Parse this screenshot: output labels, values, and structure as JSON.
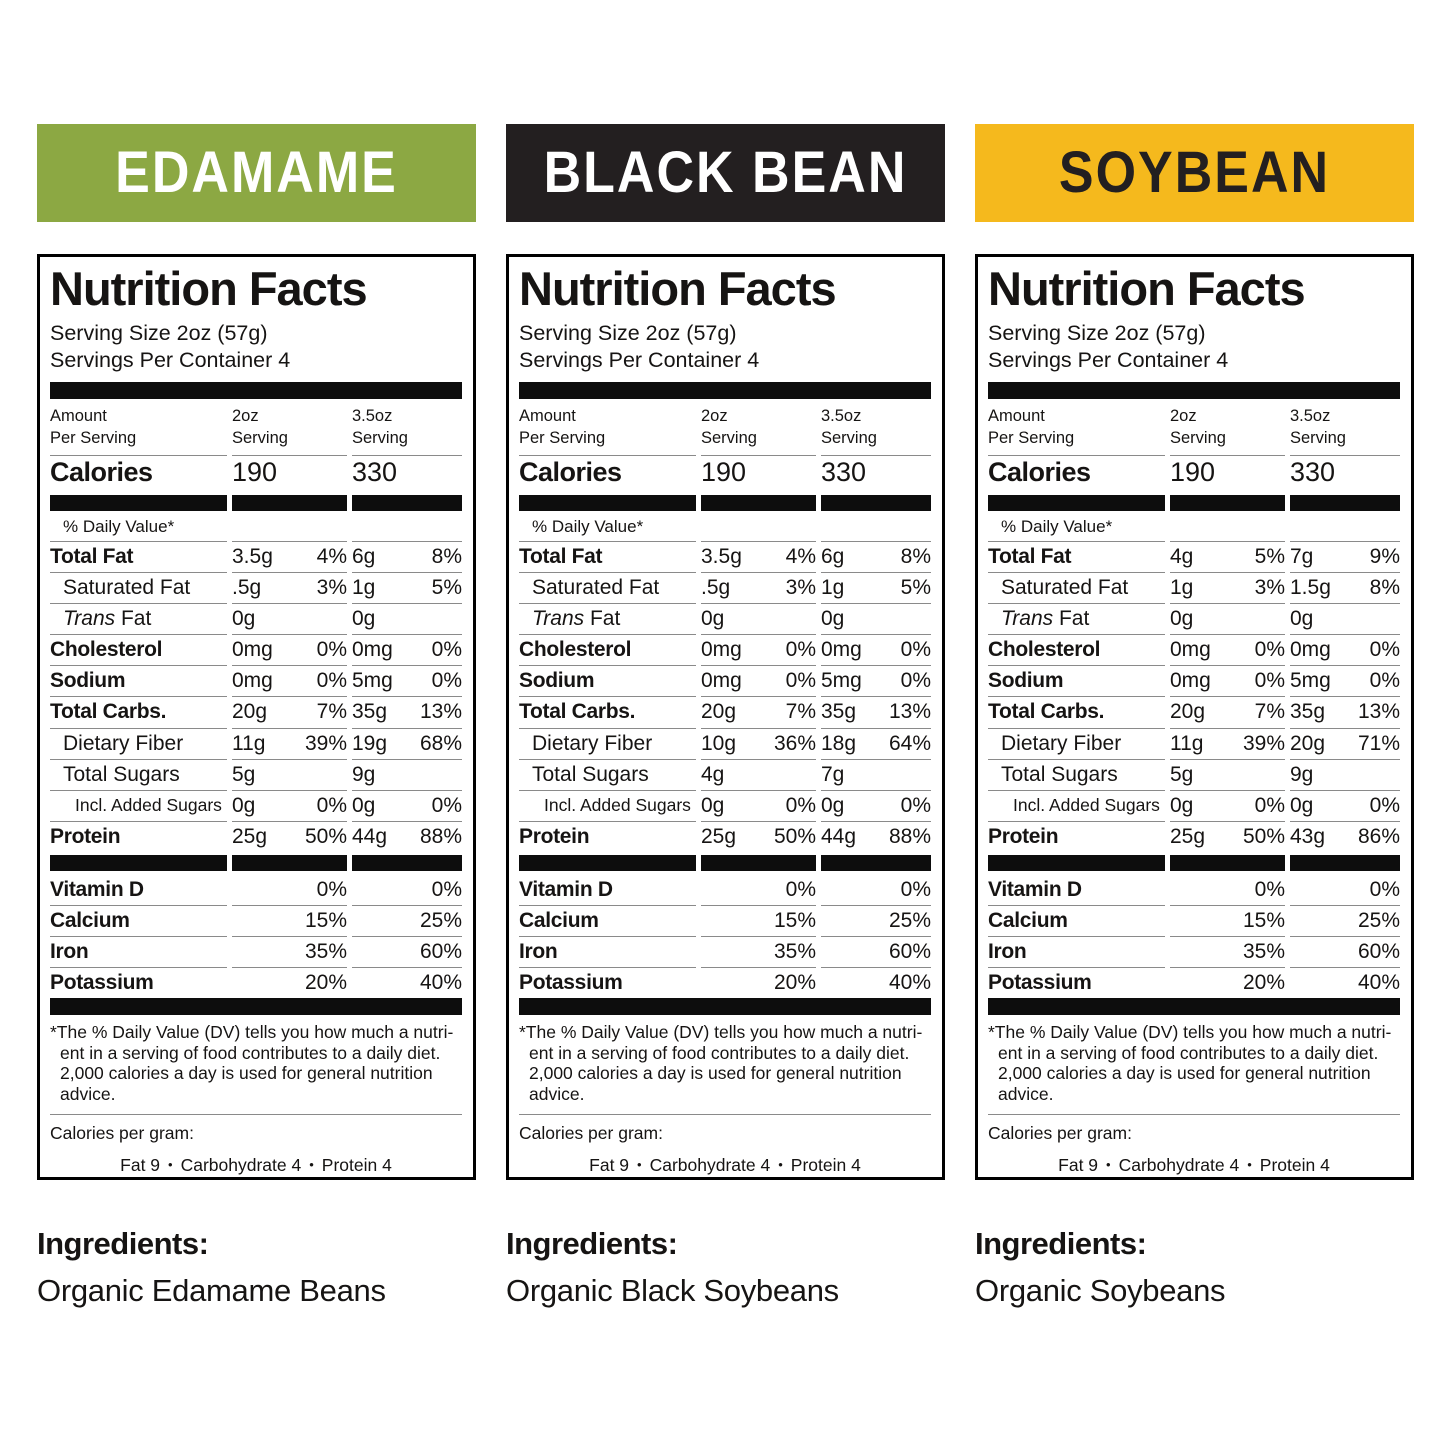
{
  "products": [
    {
      "name": "EDAMAME",
      "band": {
        "bg": "#8CA843",
        "fg": "#FFFFFF"
      },
      "ingredients": {
        "heading": "Ingredients:",
        "text": "Organic Edamame Beans"
      },
      "label": {
        "title": "Nutrition Facts",
        "serving_size": "Serving Size 2oz (57g)",
        "servings_per_container": "Servings Per Container 4",
        "columns": [
          {
            "line1": "Amount",
            "line2": "Per Serving"
          },
          {
            "line1": "2oz",
            "line2": "Serving"
          },
          {
            "line1": "3.5oz",
            "line2": "Serving"
          }
        ],
        "calories": {
          "label": "Calories",
          "v1": "190",
          "v2": "330"
        },
        "daily_value_header": "% Daily Value*",
        "nutrients": [
          {
            "name": "Total Fat",
            "bold": true,
            "a1": "3.5g",
            "p1": "4%",
            "a2": "6g",
            "p2": "8%"
          },
          {
            "name": "Saturated Fat",
            "indent": 1,
            "a1": ".5g",
            "p1": "3%",
            "a2": "1g",
            "p2": "5%"
          },
          {
            "name": "Trans Fat",
            "indent": 1,
            "italicFirst": true,
            "a1": "0g",
            "p1": "",
            "a2": "0g",
            "p2": ""
          },
          {
            "name": "Cholesterol",
            "bold": true,
            "a1": "0mg",
            "p1": "0%",
            "a2": "0mg",
            "p2": "0%"
          },
          {
            "name": "Sodium",
            "bold": true,
            "a1": "0mg",
            "p1": "0%",
            "a2": "5mg",
            "p2": "0%"
          },
          {
            "name": "Total Carbs.",
            "bold": true,
            "a1": "20g",
            "p1": "7%",
            "a2": "35g",
            "p2": "13%"
          },
          {
            "name": "Dietary Fiber",
            "indent": 1,
            "a1": "11g",
            "p1": "39%",
            "a2": "19g",
            "p2": "68%"
          },
          {
            "name": "Total Sugars",
            "indent": 1,
            "a1": "5g",
            "p1": "",
            "a2": "9g",
            "p2": ""
          },
          {
            "name": "Incl. Added Sugars",
            "indent": 2,
            "small": true,
            "a1": "0g",
            "p1": "0%",
            "a2": "0g",
            "p2": "0%"
          },
          {
            "name": "Protein",
            "bold": true,
            "a1": "25g",
            "p1": "50%",
            "a2": "44g",
            "p2": "88%"
          }
        ],
        "micros": [
          {
            "name": "Vitamin D",
            "p1": "0%",
            "p2": "0%"
          },
          {
            "name": "Calcium",
            "p1": "15%",
            "p2": "25%"
          },
          {
            "name": "Iron",
            "p1": "35%",
            "p2": "60%"
          },
          {
            "name": "Potassium",
            "p1": "20%",
            "p2": "40%"
          }
        ],
        "footnote_lines": [
          "*The % Daily Value (DV) tells you how much a nutri-",
          "ent in a serving of food contributes to a daily diet.",
          "2,000 calories a day is used for general nutrition",
          "advice."
        ],
        "calories_per_gram": {
          "label": "Calories per gram:",
          "separator": "•",
          "items": [
            "Fat 9",
            "Carbohydrate 4",
            "Protein 4"
          ]
        }
      }
    },
    {
      "name": "BLACK BEAN",
      "band": {
        "bg": "#231F20",
        "fg": "#FFFFFF"
      },
      "ingredients": {
        "heading": "Ingredients:",
        "text": "Organic Black Soybeans"
      },
      "label": {
        "title": "Nutrition Facts",
        "serving_size": "Serving Size 2oz (57g)",
        "servings_per_container": "Servings Per Container 4",
        "columns": [
          {
            "line1": "Amount",
            "line2": "Per Serving"
          },
          {
            "line1": "2oz",
            "line2": "Serving"
          },
          {
            "line1": "3.5oz",
            "line2": "Serving"
          }
        ],
        "calories": {
          "label": "Calories",
          "v1": "190",
          "v2": "330"
        },
        "daily_value_header": "% Daily Value*",
        "nutrients": [
          {
            "name": "Total Fat",
            "bold": true,
            "a1": "3.5g",
            "p1": "4%",
            "a2": "6g",
            "p2": "8%"
          },
          {
            "name": "Saturated Fat",
            "indent": 1,
            "a1": ".5g",
            "p1": "3%",
            "a2": "1g",
            "p2": "5%"
          },
          {
            "name": "Trans Fat",
            "indent": 1,
            "italicFirst": true,
            "a1": "0g",
            "p1": "",
            "a2": "0g",
            "p2": ""
          },
          {
            "name": "Cholesterol",
            "bold": true,
            "a1": "0mg",
            "p1": "0%",
            "a2": "0mg",
            "p2": "0%"
          },
          {
            "name": "Sodium",
            "bold": true,
            "a1": "0mg",
            "p1": "0%",
            "a2": "5mg",
            "p2": "0%"
          },
          {
            "name": "Total Carbs.",
            "bold": true,
            "a1": "20g",
            "p1": "7%",
            "a2": "35g",
            "p2": "13%"
          },
          {
            "name": "Dietary Fiber",
            "indent": 1,
            "a1": "10g",
            "p1": "36%",
            "a2": "18g",
            "p2": "64%"
          },
          {
            "name": "Total Sugars",
            "indent": 1,
            "a1": "4g",
            "p1": "",
            "a2": "7g",
            "p2": ""
          },
          {
            "name": "Incl. Added Sugars",
            "indent": 2,
            "small": true,
            "a1": "0g",
            "p1": "0%",
            "a2": "0g",
            "p2": "0%"
          },
          {
            "name": "Protein",
            "bold": true,
            "a1": "25g",
            "p1": "50%",
            "a2": "44g",
            "p2": "88%"
          }
        ],
        "micros": [
          {
            "name": "Vitamin D",
            "p1": "0%",
            "p2": "0%"
          },
          {
            "name": "Calcium",
            "p1": "15%",
            "p2": "25%"
          },
          {
            "name": "Iron",
            "p1": "35%",
            "p2": "60%"
          },
          {
            "name": "Potassium",
            "p1": "20%",
            "p2": "40%"
          }
        ],
        "footnote_lines": [
          "*The % Daily Value (DV) tells you how much a nutri-",
          "ent in a serving of food contributes to a daily diet.",
          "2,000 calories a day is used for general nutrition",
          "advice."
        ],
        "calories_per_gram": {
          "label": "Calories per gram:",
          "separator": "•",
          "items": [
            "Fat 9",
            "Carbohydrate 4",
            "Protein 4"
          ]
        }
      }
    },
    {
      "name": "SOYBEAN",
      "band": {
        "bg": "#F5B91D",
        "fg": "#231F20"
      },
      "ingredients": {
        "heading": "Ingredients:",
        "text": "Organic Soybeans"
      },
      "label": {
        "title": "Nutrition Facts",
        "serving_size": "Serving Size 2oz (57g)",
        "servings_per_container": "Servings Per Container 4",
        "columns": [
          {
            "line1": "Amount",
            "line2": "Per Serving"
          },
          {
            "line1": "2oz",
            "line2": "Serving"
          },
          {
            "line1": "3.5oz",
            "line2": "Serving"
          }
        ],
        "calories": {
          "label": "Calories",
          "v1": "190",
          "v2": "330"
        },
        "daily_value_header": "% Daily Value*",
        "nutrients": [
          {
            "name": "Total Fat",
            "bold": true,
            "a1": "4g",
            "p1": "5%",
            "a2": "7g",
            "p2": "9%"
          },
          {
            "name": "Saturated Fat",
            "indent": 1,
            "a1": "1g",
            "p1": "3%",
            "a2": "1.5g",
            "p2": "8%"
          },
          {
            "name": "Trans Fat",
            "indent": 1,
            "italicFirst": true,
            "a1": "0g",
            "p1": "",
            "a2": "0g",
            "p2": ""
          },
          {
            "name": "Cholesterol",
            "bold": true,
            "a1": "0mg",
            "p1": "0%",
            "a2": "0mg",
            "p2": "0%"
          },
          {
            "name": "Sodium",
            "bold": true,
            "a1": "0mg",
            "p1": "0%",
            "a2": "5mg",
            "p2": "0%"
          },
          {
            "name": "Total Carbs.",
            "bold": true,
            "a1": "20g",
            "p1": "7%",
            "a2": "35g",
            "p2": "13%"
          },
          {
            "name": "Dietary Fiber",
            "indent": 1,
            "a1": "11g",
            "p1": "39%",
            "a2": "20g",
            "p2": "71%"
          },
          {
            "name": "Total Sugars",
            "indent": 1,
            "a1": "5g",
            "p1": "",
            "a2": "9g",
            "p2": ""
          },
          {
            "name": "Incl. Added Sugars",
            "indent": 2,
            "small": true,
            "a1": "0g",
            "p1": "0%",
            "a2": "0g",
            "p2": "0%"
          },
          {
            "name": "Protein",
            "bold": true,
            "a1": "25g",
            "p1": "50%",
            "a2": "43g",
            "p2": "86%"
          }
        ],
        "micros": [
          {
            "name": "Vitamin D",
            "p1": "0%",
            "p2": "0%"
          },
          {
            "name": "Calcium",
            "p1": "15%",
            "p2": "25%"
          },
          {
            "name": "Iron",
            "p1": "35%",
            "p2": "60%"
          },
          {
            "name": "Potassium",
            "p1": "20%",
            "p2": "40%"
          }
        ],
        "footnote_lines": [
          "*The % Daily Value (DV) tells you how much a nutri-",
          "ent in a serving of food contributes to a daily diet.",
          "2,000 calories a day is used for general nutrition",
          "advice."
        ],
        "calories_per_gram": {
          "label": "Calories per gram:",
          "separator": "•",
          "items": [
            "Fat 9",
            "Carbohydrate 4",
            "Protein 4"
          ]
        }
      }
    }
  ]
}
